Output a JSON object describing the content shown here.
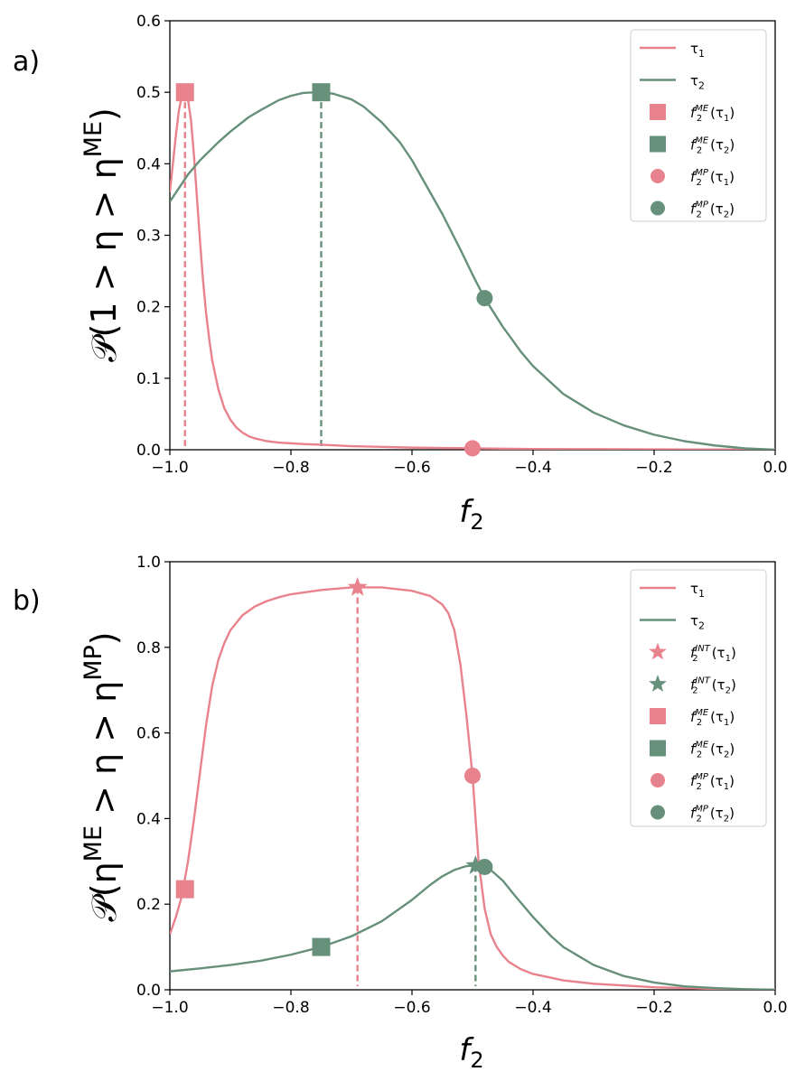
{
  "colors": {
    "tau1": "#e8828d",
    "tau2": "#66907a"
  },
  "chart_data": [
    {
      "panel_label": "a)",
      "type": "line",
      "xlabel": "f",
      "xlabel_sub": "2",
      "ylabel_text": "𝒫(1 > η > η",
      "ylabel_sup": "ME",
      "ylabel_close": ")",
      "xlim": [
        -1.0,
        0.0
      ],
      "ylim": [
        0.0,
        0.6
      ],
      "xticks": [
        -1.0,
        -0.8,
        -0.6,
        -0.4,
        -0.2,
        0.0
      ],
      "xtick_labels": [
        "−1.0",
        "−0.8",
        "−0.6",
        "−0.4",
        "−0.2",
        "0.0"
      ],
      "yticks": [
        0.0,
        0.1,
        0.2,
        0.3,
        0.4,
        0.5,
        0.6
      ],
      "ytick_labels": [
        "0.0",
        "0.1",
        "0.2",
        "0.3",
        "0.4",
        "0.5",
        "0.6"
      ],
      "series": [
        {
          "name": "τ1",
          "color_key": "tau1",
          "x": [
            -1.0,
            -0.99,
            -0.985,
            -0.98,
            -0.975,
            -0.97,
            -0.965,
            -0.96,
            -0.955,
            -0.95,
            -0.945,
            -0.94,
            -0.935,
            -0.93,
            -0.92,
            -0.91,
            -0.9,
            -0.89,
            -0.88,
            -0.87,
            -0.86,
            -0.84,
            -0.82,
            -0.8,
            -0.78,
            -0.75,
            -0.7,
            -0.65,
            -0.6,
            -0.55,
            -0.5,
            -0.45,
            -0.4,
            -0.3,
            -0.2,
            -0.1,
            0.0
          ],
          "y": [
            0.36,
            0.44,
            0.475,
            0.495,
            0.5,
            0.49,
            0.46,
            0.41,
            0.35,
            0.29,
            0.235,
            0.19,
            0.155,
            0.125,
            0.085,
            0.058,
            0.042,
            0.031,
            0.024,
            0.019,
            0.016,
            0.012,
            0.01,
            0.009,
            0.008,
            0.007,
            0.005,
            0.004,
            0.003,
            0.0025,
            0.002,
            0.0015,
            0.001,
            0.0008,
            0.0005,
            0.0003,
            0.0
          ]
        },
        {
          "name": "τ2",
          "color_key": "tau2",
          "x": [
            -1.0,
            -0.97,
            -0.95,
            -0.92,
            -0.9,
            -0.87,
            -0.85,
            -0.82,
            -0.8,
            -0.78,
            -0.76,
            -0.75,
            -0.73,
            -0.7,
            -0.68,
            -0.65,
            -0.62,
            -0.6,
            -0.58,
            -0.55,
            -0.52,
            -0.5,
            -0.48,
            -0.45,
            -0.42,
            -0.4,
            -0.35,
            -0.3,
            -0.25,
            -0.2,
            -0.15,
            -0.1,
            -0.05,
            0.0
          ],
          "y": [
            0.347,
            0.385,
            0.405,
            0.43,
            0.445,
            0.465,
            0.475,
            0.489,
            0.495,
            0.499,
            0.5,
            0.5,
            0.498,
            0.49,
            0.48,
            0.458,
            0.43,
            0.405,
            0.375,
            0.33,
            0.28,
            0.245,
            0.212,
            0.172,
            0.137,
            0.117,
            0.078,
            0.052,
            0.034,
            0.021,
            0.012,
            0.006,
            0.002,
            0.0
          ]
        }
      ],
      "markers": [
        {
          "shape": "square",
          "color_key": "tau1",
          "x": -0.975,
          "y": 0.5,
          "vline": true
        },
        {
          "shape": "square",
          "color_key": "tau2",
          "x": -0.75,
          "y": 0.5,
          "vline": true
        },
        {
          "shape": "circle",
          "color_key": "tau1",
          "x": -0.5,
          "y": 0.002,
          "vline": false
        },
        {
          "shape": "circle",
          "color_key": "tau2",
          "x": -0.48,
          "y": 0.212,
          "vline": false
        }
      ],
      "legend": {
        "placement": "top-right",
        "entries": [
          {
            "kind": "line",
            "color_key": "tau1",
            "label": "τ",
            "sub": "1"
          },
          {
            "kind": "line",
            "color_key": "tau2",
            "label": "τ",
            "sub": "2"
          },
          {
            "kind": "square",
            "color_key": "tau1",
            "label": "f",
            "sub": "2",
            "sup": "ME",
            "arg": "(τ",
            "argsub": "1",
            "close": ")"
          },
          {
            "kind": "square",
            "color_key": "tau2",
            "label": "f",
            "sub": "2",
            "sup": "ME",
            "arg": "(τ",
            "argsub": "2",
            "close": ")"
          },
          {
            "kind": "circle",
            "color_key": "tau1",
            "label": "f",
            "sub": "2",
            "sup": "MP",
            "arg": "(τ",
            "argsub": "1",
            "close": ")"
          },
          {
            "kind": "circle",
            "color_key": "tau2",
            "label": "f",
            "sub": "2",
            "sup": "MP",
            "arg": "(τ",
            "argsub": "2",
            "close": ")"
          }
        ]
      }
    },
    {
      "panel_label": "b)",
      "type": "line",
      "xlabel": "f",
      "xlabel_sub": "2",
      "ylabel_text": "𝒫(η",
      "ylabel_sup": "ME",
      "ylabel_mid": " > η > η",
      "ylabel_sup2": "MP",
      "ylabel_close": ")",
      "xlim": [
        -1.0,
        0.0
      ],
      "ylim": [
        0.0,
        1.0
      ],
      "xticks": [
        -1.0,
        -0.8,
        -0.6,
        -0.4,
        -0.2,
        0.0
      ],
      "xtick_labels": [
        "−1.0",
        "−0.8",
        "−0.6",
        "−0.4",
        "−0.2",
        "0.0"
      ],
      "yticks": [
        0.0,
        0.2,
        0.4,
        0.6,
        0.8,
        1.0
      ],
      "ytick_labels": [
        "0.0",
        "0.2",
        "0.4",
        "0.6",
        "0.8",
        "1.0"
      ],
      "series": [
        {
          "name": "τ1",
          "color_key": "tau1",
          "x": [
            -1.0,
            -0.99,
            -0.98,
            -0.97,
            -0.96,
            -0.95,
            -0.94,
            -0.93,
            -0.92,
            -0.91,
            -0.9,
            -0.88,
            -0.86,
            -0.84,
            -0.82,
            -0.8,
            -0.75,
            -0.7,
            -0.65,
            -0.6,
            -0.57,
            -0.55,
            -0.54,
            -0.53,
            -0.52,
            -0.51,
            -0.5,
            -0.495,
            -0.49,
            -0.48,
            -0.47,
            -0.46,
            -0.45,
            -0.44,
            -0.42,
            -0.4,
            -0.35,
            -0.3,
            -0.2,
            -0.1,
            0.0
          ],
          "y": [
            0.13,
            0.17,
            0.22,
            0.3,
            0.4,
            0.51,
            0.62,
            0.71,
            0.77,
            0.81,
            0.84,
            0.875,
            0.895,
            0.908,
            0.917,
            0.924,
            0.934,
            0.94,
            0.94,
            0.932,
            0.92,
            0.9,
            0.88,
            0.84,
            0.76,
            0.64,
            0.5,
            0.4,
            0.3,
            0.19,
            0.13,
            0.1,
            0.08,
            0.065,
            0.048,
            0.037,
            0.022,
            0.014,
            0.006,
            0.002,
            0.0
          ]
        },
        {
          "name": "τ2",
          "color_key": "tau2",
          "x": [
            -1.0,
            -0.95,
            -0.9,
            -0.85,
            -0.8,
            -0.75,
            -0.7,
            -0.65,
            -0.6,
            -0.57,
            -0.55,
            -0.53,
            -0.51,
            -0.5,
            -0.49,
            -0.48,
            -0.47,
            -0.45,
            -0.43,
            -0.4,
            -0.37,
            -0.35,
            -0.3,
            -0.25,
            -0.2,
            -0.15,
            -0.1,
            -0.05,
            0.0
          ],
          "y": [
            0.043,
            0.05,
            0.058,
            0.068,
            0.082,
            0.1,
            0.125,
            0.16,
            0.21,
            0.245,
            0.265,
            0.28,
            0.289,
            0.29,
            0.29,
            0.287,
            0.28,
            0.255,
            0.22,
            0.17,
            0.125,
            0.1,
            0.058,
            0.032,
            0.017,
            0.008,
            0.004,
            0.0015,
            0.0
          ]
        }
      ],
      "markers": [
        {
          "shape": "star",
          "color_key": "tau1",
          "x": -0.69,
          "y": 0.94,
          "vline": true
        },
        {
          "shape": "star",
          "color_key": "tau2",
          "x": -0.495,
          "y": 0.29,
          "vline": true
        },
        {
          "shape": "square",
          "color_key": "tau1",
          "x": -0.975,
          "y": 0.235,
          "vline": false
        },
        {
          "shape": "square",
          "color_key": "tau2",
          "x": -0.75,
          "y": 0.1,
          "vline": false
        },
        {
          "shape": "circle",
          "color_key": "tau1",
          "x": -0.5,
          "y": 0.5,
          "vline": false
        },
        {
          "shape": "circle",
          "color_key": "tau2",
          "x": -0.48,
          "y": 0.287,
          "vline": false
        }
      ],
      "legend": {
        "placement": "top-right",
        "entries": [
          {
            "kind": "line",
            "color_key": "tau1",
            "label": "τ",
            "sub": "1"
          },
          {
            "kind": "line",
            "color_key": "tau2",
            "label": "τ",
            "sub": "2"
          },
          {
            "kind": "star",
            "color_key": "tau1",
            "label": "f",
            "sub": "2",
            "sup": "INT",
            "arg": "(τ",
            "argsub": "1",
            "close": ")"
          },
          {
            "kind": "star",
            "color_key": "tau2",
            "label": "f",
            "sub": "2",
            "sup": "INT",
            "arg": "(τ",
            "argsub": "2",
            "close": ")"
          },
          {
            "kind": "square",
            "color_key": "tau1",
            "label": "f",
            "sub": "2",
            "sup": "ME",
            "arg": "(τ",
            "argsub": "1",
            "close": ")"
          },
          {
            "kind": "square",
            "color_key": "tau2",
            "label": "f",
            "sub": "2",
            "sup": "ME",
            "arg": "(τ",
            "argsub": "2",
            "close": ")"
          },
          {
            "kind": "circle",
            "color_key": "tau1",
            "label": "f",
            "sub": "2",
            "sup": "MP",
            "arg": "(τ",
            "argsub": "1",
            "close": ")"
          },
          {
            "kind": "circle",
            "color_key": "tau2",
            "label": "f",
            "sub": "2",
            "sup": "MP",
            "arg": "(τ",
            "argsub": "2",
            "close": ")"
          }
        ]
      }
    }
  ]
}
